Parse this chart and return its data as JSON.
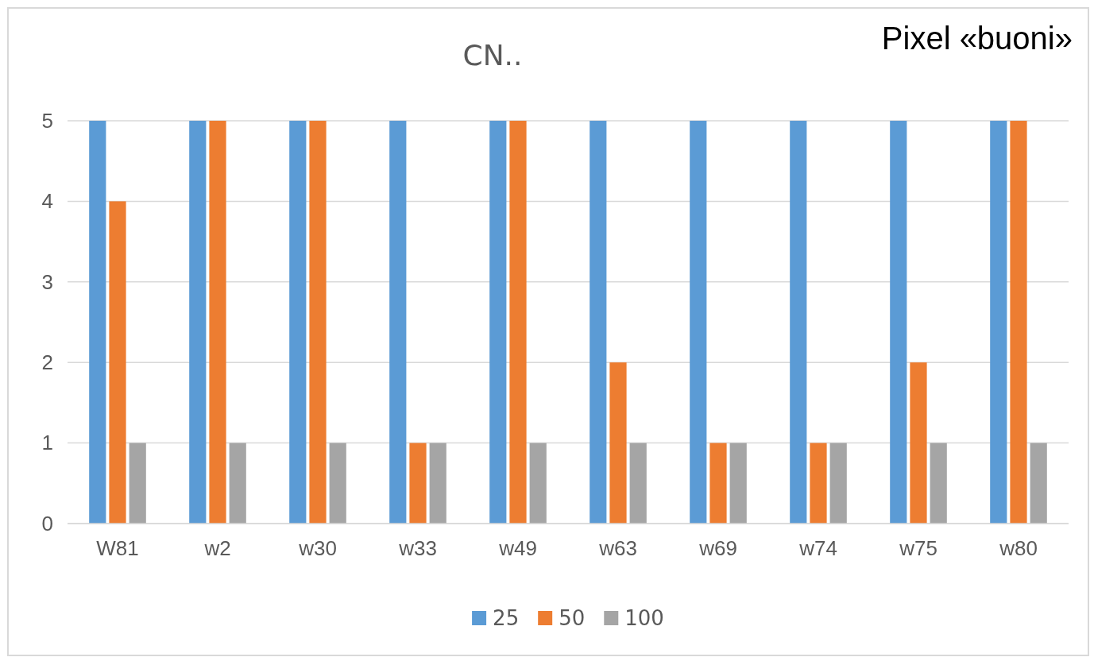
{
  "chart_data": {
    "type": "bar",
    "title": "CN..",
    "annotations": [
      "Pixel «buoni»"
    ],
    "categories": [
      "W81",
      "w2",
      "w30",
      "w33",
      "w49",
      "w63",
      "w69",
      "w74",
      "w75",
      "w80"
    ],
    "series": [
      {
        "name": "25",
        "color": "#5b9bd5",
        "values": [
          5,
          5,
          5,
          5,
          5,
          5,
          5,
          5,
          5,
          5
        ]
      },
      {
        "name": "50",
        "color": "#ed7d31",
        "values": [
          4,
          5,
          5,
          1,
          5,
          2,
          1,
          1,
          2,
          5
        ]
      },
      {
        "name": "100",
        "color": "#a5a5a5",
        "values": [
          1,
          1,
          1,
          1,
          1,
          1,
          1,
          1,
          1,
          1
        ]
      }
    ],
    "ylim": [
      0,
      5
    ],
    "yticks": [
      0,
      1,
      2,
      3,
      4,
      5
    ],
    "grid": "y",
    "legend": "bottom"
  }
}
